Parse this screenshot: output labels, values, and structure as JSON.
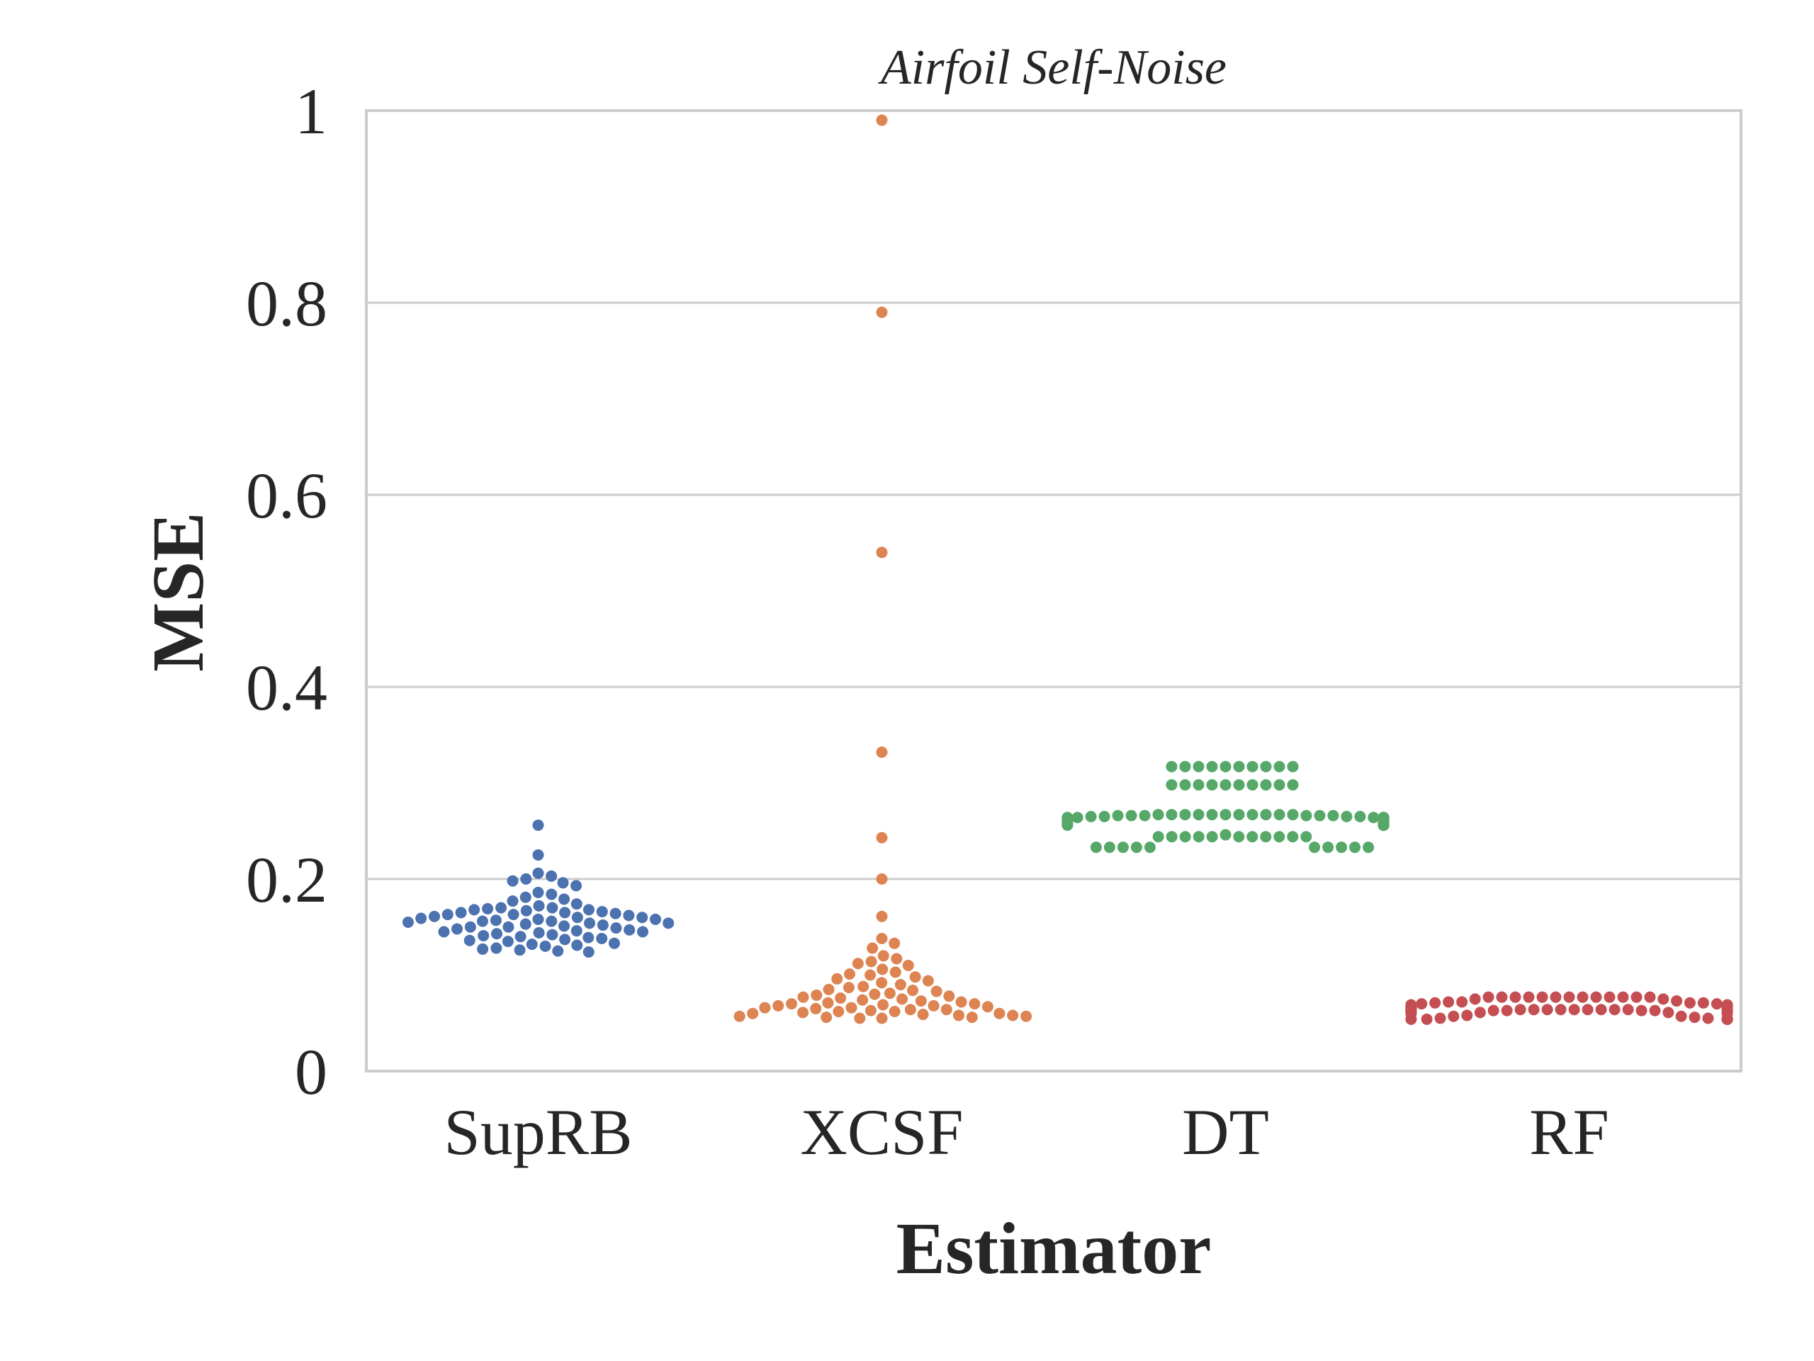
{
  "chart_data": {
    "type": "scatter",
    "subtype": "swarm",
    "title": "Airfoil Self-Noise",
    "xlabel": "Estimator",
    "ylabel": "MSE",
    "ylim": [
      0,
      1
    ],
    "yticks": [
      0,
      0.2,
      0.4,
      0.6,
      0.8,
      1
    ],
    "ytick_labels": [
      "0",
      "0.2",
      "0.4",
      "0.6",
      "0.8",
      "1"
    ],
    "grid": "horizontal",
    "categories": [
      "SupRB",
      "XCSF",
      "DT",
      "RF"
    ],
    "series": [
      {
        "color": "#4c72b0",
        "values": [
          0.256,
          0.225,
          0.206,
          0.203,
          0.2,
          0.198,
          0.196,
          0.193,
          0.186,
          0.184,
          0.181,
          0.179,
          0.177,
          0.174,
          0.172,
          0.17,
          0.17,
          0.169,
          0.168,
          0.168,
          0.167,
          0.166,
          0.165,
          0.165,
          0.164,
          0.163,
          0.163,
          0.162,
          0.161,
          0.16,
          0.16,
          0.159,
          0.158,
          0.158,
          0.157,
          0.156,
          0.156,
          0.155,
          0.154,
          0.154,
          0.153,
          0.152,
          0.151,
          0.15,
          0.15,
          0.149,
          0.148,
          0.147,
          0.146,
          0.145,
          0.145,
          0.144,
          0.143,
          0.142,
          0.141,
          0.14,
          0.139,
          0.138,
          0.137,
          0.136,
          0.135,
          0.133,
          0.132,
          0.131,
          0.13,
          0.128,
          0.127,
          0.126,
          0.125,
          0.124
        ]
      },
      {
        "color": "#dd8452",
        "values": [
          0.99,
          0.79,
          0.54,
          0.332,
          0.243,
          0.2,
          0.161,
          0.138,
          0.133,
          0.128,
          0.12,
          0.117,
          0.114,
          0.112,
          0.11,
          0.106,
          0.103,
          0.101,
          0.1,
          0.098,
          0.096,
          0.094,
          0.092,
          0.09,
          0.088,
          0.087,
          0.085,
          0.084,
          0.083,
          0.081,
          0.08,
          0.079,
          0.078,
          0.077,
          0.076,
          0.075,
          0.074,
          0.073,
          0.072,
          0.071,
          0.07,
          0.07,
          0.069,
          0.068,
          0.068,
          0.067,
          0.066,
          0.066,
          0.065,
          0.064,
          0.064,
          0.063,
          0.062,
          0.062,
          0.061,
          0.06,
          0.06,
          0.059,
          0.058,
          0.058,
          0.057,
          0.057,
          0.056,
          0.056,
          0.055,
          0.055
        ]
      },
      {
        "color": "#55a868",
        "values": [
          0.317,
          0.317,
          0.317,
          0.317,
          0.317,
          0.317,
          0.317,
          0.317,
          0.317,
          0.317,
          0.298,
          0.298,
          0.298,
          0.298,
          0.298,
          0.298,
          0.298,
          0.298,
          0.298,
          0.298,
          0.267,
          0.267,
          0.267,
          0.267,
          0.267,
          0.267,
          0.267,
          0.267,
          0.267,
          0.267,
          0.267,
          0.266,
          0.266,
          0.266,
          0.266,
          0.266,
          0.266,
          0.265,
          0.265,
          0.265,
          0.265,
          0.264,
          0.264,
          0.264,
          0.264,
          0.264,
          0.264,
          0.263,
          0.263,
          0.263,
          0.263,
          0.262,
          0.262,
          0.262,
          0.262,
          0.261,
          0.261,
          0.261,
          0.26,
          0.26,
          0.26,
          0.259,
          0.259,
          0.258,
          0.258,
          0.256,
          0.256,
          0.256,
          0.256,
          0.256,
          0.256,
          0.256,
          0.256,
          0.256,
          0.256,
          0.256,
          0.256,
          0.246,
          0.244,
          0.244,
          0.244,
          0.244,
          0.244,
          0.244,
          0.244,
          0.244,
          0.244,
          0.244,
          0.244,
          0.233,
          0.233,
          0.233,
          0.233,
          0.233,
          0.233,
          0.233,
          0.233,
          0.233,
          0.233
        ]
      },
      {
        "color": "#c44e52",
        "values": [
          0.077,
          0.077,
          0.077,
          0.077,
          0.077,
          0.077,
          0.077,
          0.077,
          0.077,
          0.077,
          0.077,
          0.077,
          0.077,
          0.075,
          0.075,
          0.073,
          0.072,
          0.072,
          0.071,
          0.071,
          0.071,
          0.07,
          0.07,
          0.069,
          0.069,
          0.068,
          0.068,
          0.067,
          0.067,
          0.067,
          0.066,
          0.066,
          0.066,
          0.066,
          0.065,
          0.065,
          0.065,
          0.065,
          0.065,
          0.065,
          0.065,
          0.065,
          0.064,
          0.064,
          0.064,
          0.064,
          0.064,
          0.064,
          0.064,
          0.064,
          0.064,
          0.063,
          0.063,
          0.063,
          0.063,
          0.063,
          0.063,
          0.063,
          0.063,
          0.062,
          0.062,
          0.062,
          0.062,
          0.062,
          0.061,
          0.061,
          0.061,
          0.06,
          0.06,
          0.058,
          0.057,
          0.057,
          0.056,
          0.055,
          0.055,
          0.054,
          0.054,
          0.054,
          0.054,
          0.054,
          0.054,
          0.054,
          0.054,
          0.054,
          0.054,
          0.054,
          0.054,
          0.054,
          0.054
        ]
      }
    ]
  }
}
